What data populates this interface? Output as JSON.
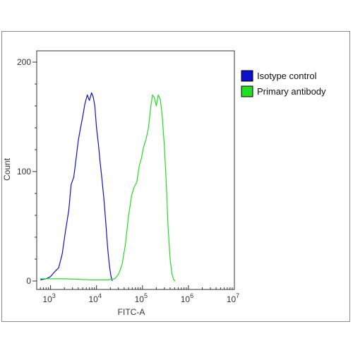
{
  "chart_data": {
    "type": "line",
    "xlabel": "FITC-A",
    "ylabel": "Count",
    "x_scale": "log",
    "xlim": [
      500,
      10000000
    ],
    "ylim": [
      0,
      200
    ],
    "x_ticks": [
      {
        "value": 1000,
        "base": "10",
        "exp": "3"
      },
      {
        "value": 10000,
        "base": "10",
        "exp": "4"
      },
      {
        "value": 100000,
        "base": "10",
        "exp": "5"
      },
      {
        "value": 1000000,
        "base": "10",
        "exp": "6"
      },
      {
        "value": 10000000,
        "base": "10",
        "exp": "7"
      }
    ],
    "y_ticks": [
      {
        "value": 0,
        "label": "0"
      },
      {
        "value": 100,
        "label": "100"
      },
      {
        "value": 200,
        "label": "200"
      }
    ],
    "grid": false,
    "legend_position": "right",
    "series": [
      {
        "name": "Isotype control",
        "color": "#1010cc",
        "x": [
          600,
          800,
          1000,
          1200,
          1500,
          1800,
          2100,
          2500,
          2800,
          3200,
          3600,
          4000,
          4500,
          5000,
          5600,
          6300,
          7000,
          7800,
          8500,
          9200,
          10000,
          11000,
          12000,
          13000,
          14500,
          16000,
          17500,
          19000,
          20500,
          22000
        ],
        "y": [
          1,
          2,
          4,
          8,
          12,
          25,
          45,
          65,
          88,
          95,
          112,
          128,
          140,
          150,
          162,
          170,
          165,
          172,
          168,
          160,
          140,
          125,
          108,
          95,
          75,
          52,
          30,
          15,
          5,
          0
        ]
      },
      {
        "name": "Primary antibody",
        "color": "#22dd22",
        "x": [
          600,
          2000,
          8000,
          18000,
          25000,
          30000,
          36000,
          42000,
          50000,
          58000,
          66000,
          75000,
          85000,
          95000,
          105000,
          120000,
          135000,
          150000,
          165000,
          180000,
          200000,
          220000,
          245000,
          270000,
          300000,
          330000,
          360000,
          400000,
          440000,
          480000,
          520000
        ],
        "y": [
          2,
          2,
          1,
          1,
          2,
          6,
          15,
          32,
          60,
          78,
          86,
          90,
          105,
          112,
          122,
          130,
          140,
          158,
          170,
          168,
          160,
          170,
          166,
          150,
          122,
          88,
          50,
          20,
          6,
          1,
          0
        ]
      }
    ]
  }
}
